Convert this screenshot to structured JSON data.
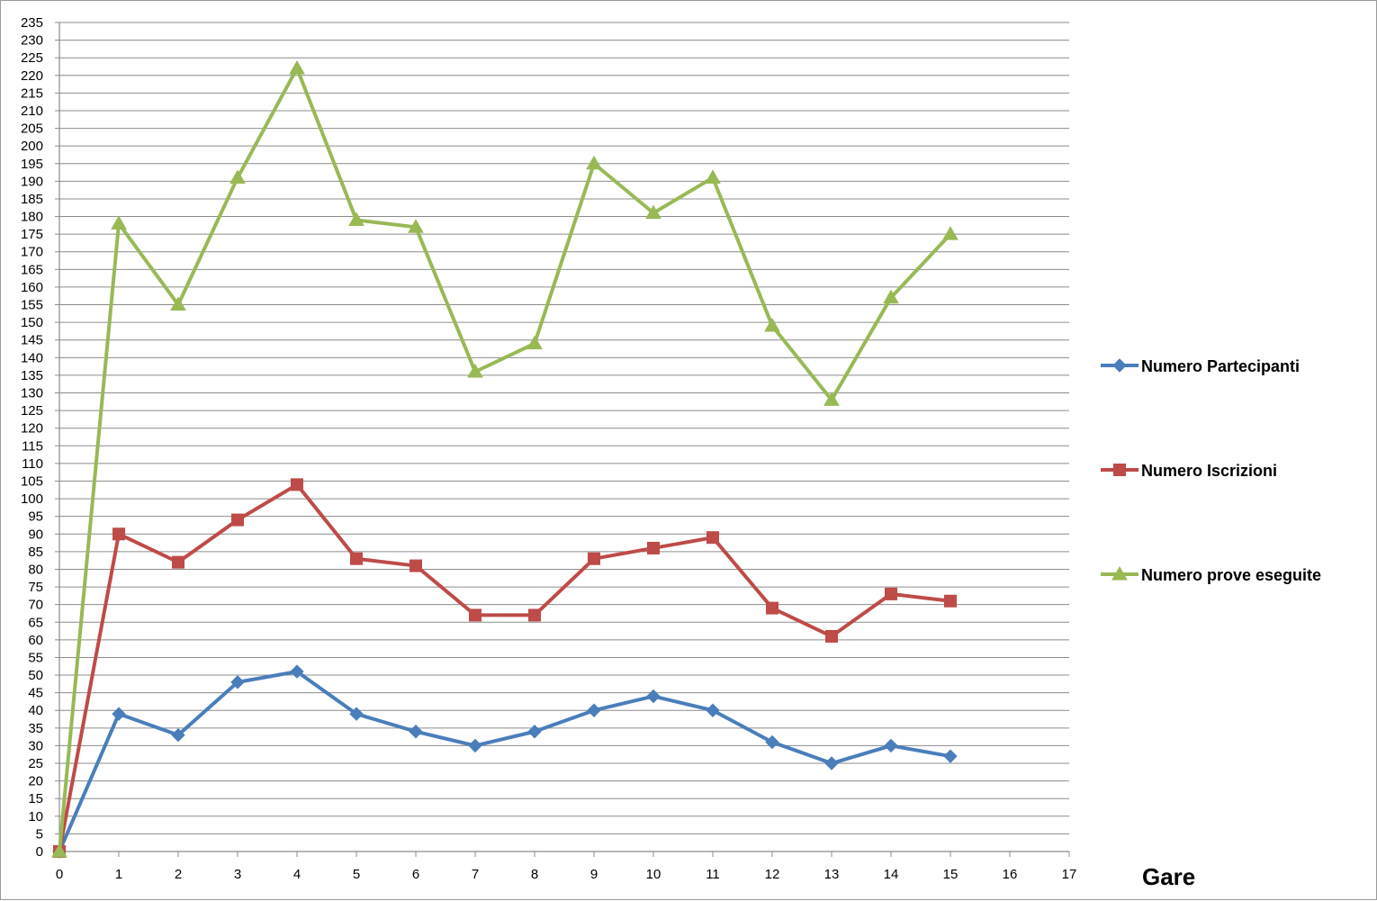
{
  "chart_data": {
    "type": "line",
    "x": [
      0,
      1,
      2,
      3,
      4,
      5,
      6,
      7,
      8,
      9,
      10,
      11,
      12,
      13,
      14,
      15
    ],
    "xlim": [
      0,
      17
    ],
    "xticks": [
      0,
      1,
      2,
      3,
      4,
      5,
      6,
      7,
      8,
      9,
      10,
      11,
      12,
      13,
      14,
      15,
      16,
      17
    ],
    "ylim": [
      0,
      235
    ],
    "ytick_step": 5,
    "xlabel": "Gare",
    "ylabel": "",
    "title": "",
    "grid": "horizontal",
    "legend_position": "right",
    "series": [
      {
        "name": "Numero Partecipanti",
        "color": "#4a7ebb",
        "marker": "diamond",
        "values": [
          0,
          39,
          33,
          48,
          51,
          39,
          34,
          30,
          34,
          40,
          44,
          40,
          31,
          25,
          30,
          27
        ]
      },
      {
        "name": "Numero Iscrizioni",
        "color": "#be4b48",
        "marker": "square",
        "values": [
          0,
          90,
          82,
          94,
          104,
          83,
          81,
          67,
          67,
          83,
          86,
          89,
          69,
          61,
          73,
          71
        ]
      },
      {
        "name": "Numero prove eseguite",
        "color": "#98b954",
        "marker": "triangle",
        "values": [
          0,
          178,
          155,
          191,
          222,
          179,
          177,
          136,
          144,
          195,
          181,
          191,
          149,
          128,
          157,
          175
        ]
      }
    ]
  }
}
